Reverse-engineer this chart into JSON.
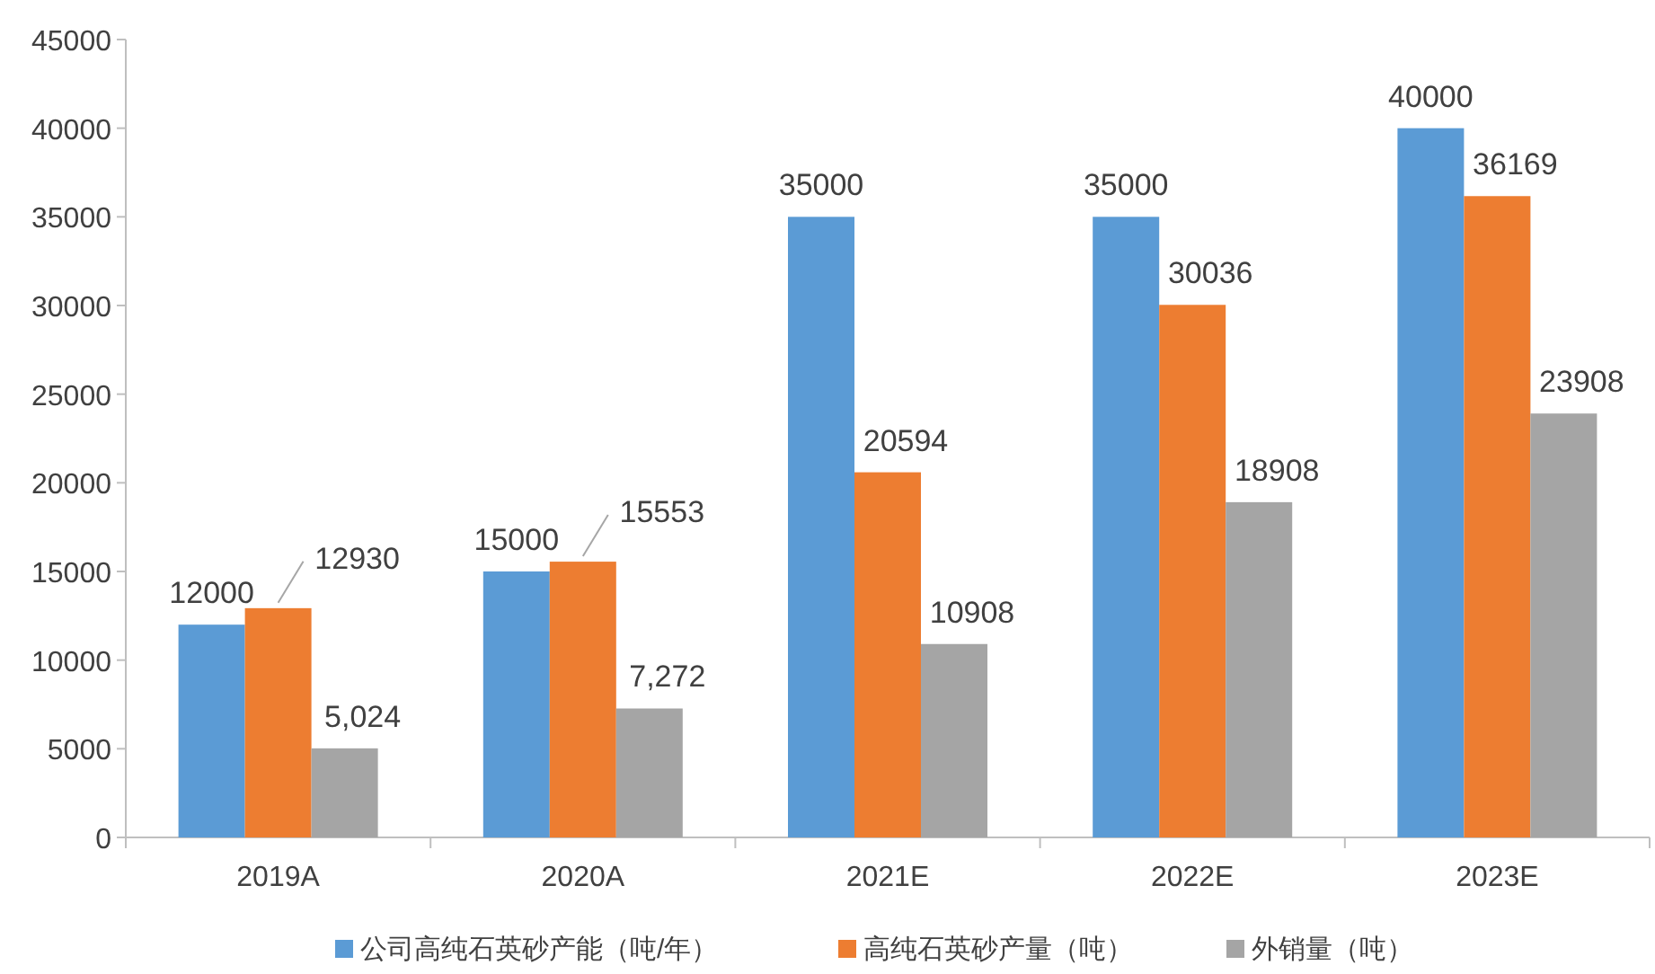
{
  "chart_data": {
    "type": "bar",
    "categories": [
      "2019A",
      "2020A",
      "2021E",
      "2022E",
      "2023E"
    ],
    "series": [
      {
        "name": "公司高纯石英砂产能（吨/年）",
        "color": "#5b9bd5",
        "values": [
          12000,
          15000,
          35000,
          35000,
          40000
        ],
        "value_labels": [
          "12000",
          "15000",
          "35000",
          "35000",
          "40000"
        ]
      },
      {
        "name": "高纯石英砂产量（吨）",
        "color": "#ed7d31",
        "values": [
          12930,
          15553,
          20594,
          30036,
          36169
        ],
        "value_labels": [
          "12930",
          "15553",
          "20594",
          "30036",
          "36169"
        ]
      },
      {
        "name": "外销量（吨）",
        "color": "#a5a5a5",
        "values": [
          5024,
          7272,
          10908,
          18908,
          23908
        ],
        "value_labels": [
          "5,024",
          "7,272",
          "10908",
          "18908",
          "23908"
        ]
      }
    ],
    "ylim": [
      0,
      45000
    ],
    "yticks": [
      0,
      5000,
      10000,
      15000,
      20000,
      25000,
      30000,
      35000,
      40000,
      45000
    ],
    "legend": "bottom"
  }
}
